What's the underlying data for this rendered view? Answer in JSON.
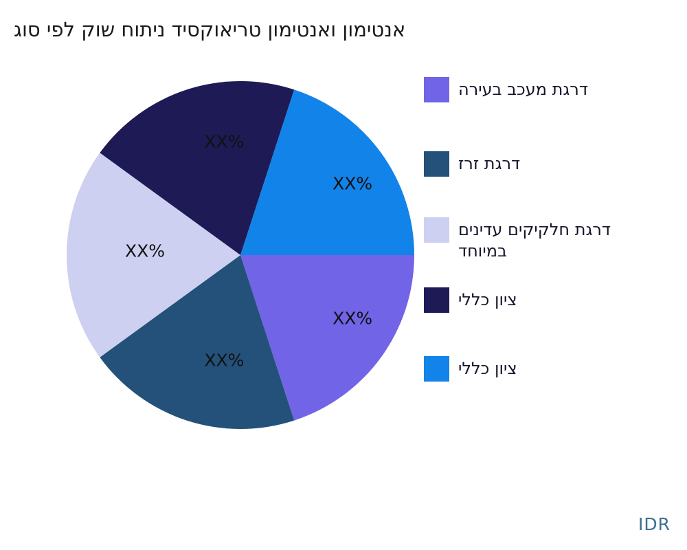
{
  "watermark": "IDR",
  "chart_data": {
    "type": "pie",
    "title": "אנטימון ואנטימון טריאוקסיד ניתוח שוק לפי סוג",
    "legend_position": "right",
    "start_angle_deg": 0,
    "direction": "clockwise",
    "value_labels_masked": "XX%",
    "slices": [
      {
        "label": "דרגת מעכב בעירה",
        "value": 20,
        "color": "#7264e6",
        "display_label": "XX%"
      },
      {
        "label": "דרגת זרז",
        "value": 20,
        "color": "#235179",
        "display_label": "XX%"
      },
      {
        "label": "דרגת חלקיקים עדינים\nבמיוחד",
        "value": 20,
        "color": "#cdd0f0",
        "display_label": "XX%"
      },
      {
        "label": "ציון כללי",
        "value": 20,
        "color": "#1d1a55",
        "display_label": "XX%"
      },
      {
        "label": "ציון כללי",
        "value": 20,
        "color": "#1283e8",
        "display_label": "XX%"
      }
    ]
  }
}
